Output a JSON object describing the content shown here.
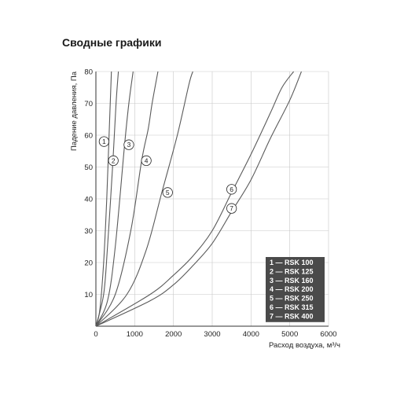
{
  "title": "Сводные графики",
  "chart_data": {
    "type": "line",
    "title": "Сводные графики",
    "xlabel": "Расход воздуха, м³/ч",
    "ylabel": "Падение давления, Па",
    "xlim": [
      0,
      6000
    ],
    "ylim": [
      0,
      80
    ],
    "xticks": [
      "0",
      "1000",
      "2000",
      "3000",
      "4000",
      "5000",
      "6000"
    ],
    "yticks": [
      "10",
      "20",
      "30",
      "40",
      "50",
      "60",
      "70",
      "80"
    ],
    "grid": true,
    "legend_position": "bottom-right",
    "series": [
      {
        "name": "RSK 100",
        "marker": "1",
        "x": [
          0,
          100,
          200,
          280,
          340,
          400
        ],
        "y": [
          0,
          5,
          20,
          40,
          60,
          80
        ],
        "label_at": [
          210,
          58
        ]
      },
      {
        "name": "RSK 125",
        "marker": "2",
        "x": [
          0,
          200,
          300,
          440,
          520,
          580
        ],
        "y": [
          0,
          10,
          25,
          52,
          70,
          80
        ],
        "label_at": [
          450,
          52
        ]
      },
      {
        "name": "RSK 160",
        "marker": "3",
        "x": [
          0,
          300,
          500,
          740,
          850,
          960
        ],
        "y": [
          0,
          8,
          25,
          57,
          70,
          80
        ],
        "label_at": [
          850,
          57
        ]
      },
      {
        "name": "RSK 200",
        "marker": "4",
        "x": [
          0,
          500,
          900,
          1180,
          1350,
          1450,
          1600
        ],
        "y": [
          0,
          10,
          30,
          52,
          62,
          70,
          80
        ],
        "label_at": [
          1300,
          52
        ]
      },
      {
        "name": "RSK 250",
        "marker": "5",
        "x": [
          0,
          800,
          1300,
          1700,
          2100,
          2400,
          2500
        ],
        "y": [
          0,
          10,
          24,
          42,
          60,
          76,
          80
        ],
        "label_at": [
          1850,
          42
        ]
      },
      {
        "name": "RSK 315",
        "marker": "6",
        "x": [
          0,
          1400,
          2000,
          2500,
          3000,
          3500,
          4000,
          4500,
          4800,
          5100
        ],
        "y": [
          0,
          10,
          16,
          22,
          30,
          42,
          54,
          67,
          75,
          80
        ],
        "label_at": [
          3500,
          43
        ]
      },
      {
        "name": "RSK 400",
        "marker": "7",
        "x": [
          0,
          1400,
          2000,
          2500,
          3000,
          3500,
          4000,
          4500,
          5000,
          5300
        ],
        "y": [
          0,
          8,
          13,
          19,
          26,
          36,
          46,
          59,
          71,
          80
        ],
        "label_at": [
          3500,
          37
        ]
      }
    ],
    "legend": [
      "1 — RSK 100",
      "2 — RSK 125",
      "3 — RSK 160",
      "4 — RSK 200",
      "5 — RSK 250",
      "6 — RSK 315",
      "7 — RSK 400"
    ],
    "colors": {
      "curve": "#5a5a5a",
      "grid": "#c8c8c8",
      "axis": "#333333",
      "legend_bg": "#4a4a4a",
      "legend_text": "#ffffff"
    }
  }
}
